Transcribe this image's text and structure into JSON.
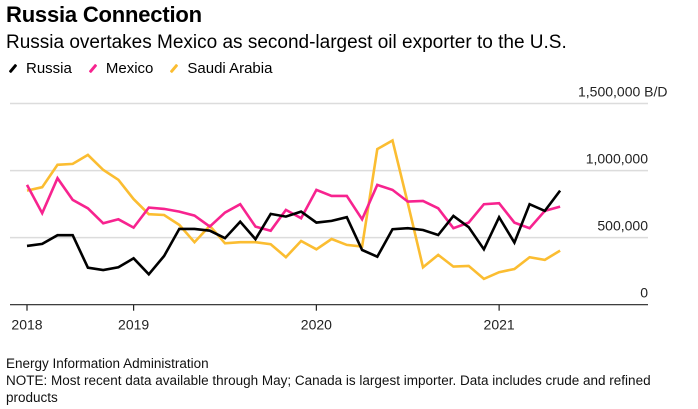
{
  "header": {
    "title": "Russia Connection",
    "subtitle": "Russia overtakes Mexico as second-largest oil exporter to the U.S."
  },
  "footer": {
    "source": "Energy Information Administration",
    "note": "NOTE: Most recent data available through May; Canada is largest importer. Data includes crude and refined products"
  },
  "chart_data": {
    "type": "line",
    "title": "Russia Connection",
    "subtitle": "Russia overtakes Mexico as second-largest oil exporter to the U.S.",
    "xlabel": "",
    "ylabel": "B/D",
    "ylim": [
      0,
      1500000
    ],
    "y_ticks": [
      0,
      500000,
      1000000,
      1500000
    ],
    "y_tick_labels": [
      "0",
      "500,000",
      "1,000,000",
      "1,500,000 B/D"
    ],
    "y_axis_position": "right",
    "grid": true,
    "legend_position": "top-left",
    "x": [
      "2018-06",
      "2018-07",
      "2018-08",
      "2018-09",
      "2018-10",
      "2018-11",
      "2018-12",
      "2019-01",
      "2019-02",
      "2019-03",
      "2019-04",
      "2019-05",
      "2019-06",
      "2019-07",
      "2019-08",
      "2019-09",
      "2019-10",
      "2019-11",
      "2019-12",
      "2020-01",
      "2020-02",
      "2020-03",
      "2020-04",
      "2020-05",
      "2020-06",
      "2020-07",
      "2020-08",
      "2020-09",
      "2020-10",
      "2020-11",
      "2020-12",
      "2021-01",
      "2021-02",
      "2021-03",
      "2021-04",
      "2021-05"
    ],
    "x_ticks": [
      {
        "index": 0,
        "label": "2018"
      },
      {
        "index": 7,
        "label": "2019"
      },
      {
        "index": 19,
        "label": "2020"
      },
      {
        "index": 31,
        "label": "2021"
      }
    ],
    "series": [
      {
        "name": "Russia",
        "color": "#000000",
        "values": [
          438000,
          453000,
          518000,
          518000,
          276000,
          259000,
          279000,
          346000,
          227000,
          363000,
          565000,
          565000,
          552000,
          496000,
          619000,
          488000,
          677000,
          657000,
          694000,
          612000,
          625000,
          652000,
          408000,
          358000,
          563000,
          570000,
          557000,
          520000,
          662000,
          578000,
          413000,
          652000,
          463000,
          749000,
          699000,
          851000
        ]
      },
      {
        "name": "Mexico",
        "color": "#f7238f",
        "values": [
          893000,
          682000,
          943000,
          781000,
          719000,
          607000,
          637000,
          575000,
          724000,
          714000,
          694000,
          664000,
          582000,
          687000,
          749000,
          582000,
          552000,
          707000,
          645000,
          856000,
          811000,
          811000,
          637000,
          893000,
          856000,
          769000,
          774000,
          719000,
          570000,
          612000,
          749000,
          757000,
          612000,
          570000,
          699000,
          731000
        ]
      },
      {
        "name": "Saudi Arabia",
        "color": "#fbbd31",
        "values": [
          851000,
          876000,
          1043000,
          1050000,
          1117000,
          1005000,
          931000,
          787000,
          675000,
          669000,
          595000,
          466000,
          588000,
          458000,
          466000,
          466000,
          451000,
          354000,
          475000,
          413000,
          490000,
          446000,
          433000,
          1160000,
          1224000,
          757000,
          279000,
          371000,
          284000,
          289000,
          192000,
          242000,
          266000,
          354000,
          334000,
          403000
        ]
      }
    ]
  }
}
